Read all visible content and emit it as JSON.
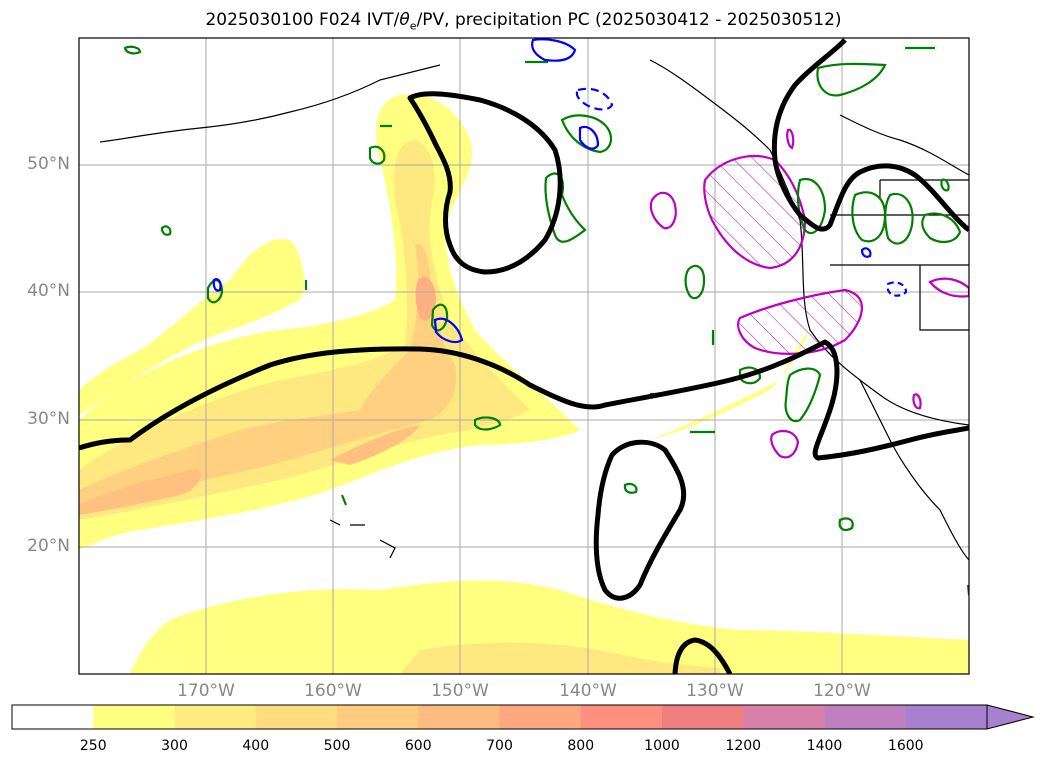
{
  "title": {
    "prefix": "2025030100 F024 IVT/",
    "theta": "θ",
    "theta_sub": "e",
    "suffix": "/PV, precipitation PC (2025030412 - 2025030512)"
  },
  "map": {
    "lon_ticks": [
      "170°W",
      "160°W",
      "150°W",
      "140°W",
      "130°W",
      "120°W"
    ],
    "lat_ticks": [
      "50°N",
      "40°N",
      "30°N",
      "20°N"
    ],
    "lon_range": [
      -180,
      -114
    ],
    "lat_range": [
      10,
      60
    ],
    "colors": {
      "ivt_250": "#ffff80",
      "ivt_300": "#ffe880",
      "ivt_400": "#ffd080",
      "ivt_500": "#ffc080",
      "precip_contour": "#008000",
      "pv_contour": "#0000ff",
      "theta_contour": "#000000",
      "anomaly_contour": "#c000c0"
    }
  },
  "colorbar": {
    "labels": [
      "250",
      "300",
      "400",
      "500",
      "600",
      "700",
      "800",
      "1000",
      "1200",
      "1400",
      "1600"
    ],
    "colors": [
      "#ffffff",
      "#ffff80",
      "#ffec80",
      "#ffdc80",
      "#ffcc80",
      "#ffbb80",
      "#ffa880",
      "#ff9080",
      "#f08080",
      "#d880a8",
      "#c080c0",
      "#a880d0"
    ]
  }
}
